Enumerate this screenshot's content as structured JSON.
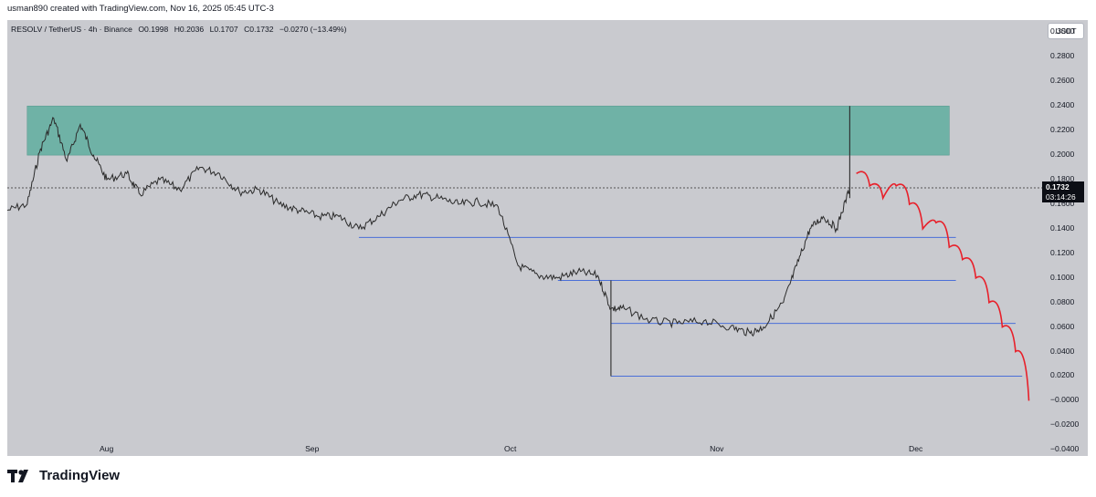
{
  "header": {
    "credit": "usman890 created with TradingView.com, Nov 16, 2025 05:45 UTC-3"
  },
  "legend": {
    "symbol": "RESOLV / TetherUS · 4h · Binance",
    "open": "O0.1998",
    "high": "H0.2036",
    "low": "L0.1707",
    "close": "C0.1732",
    "change": "−0.0270 (−13.49%)"
  },
  "quote_currency": "USDT",
  "last_price": {
    "value": "0.1732",
    "countdown": "03:14:26"
  },
  "brand": {
    "name": "TradingView"
  },
  "colors": {
    "zone": "#6fb2a6",
    "levels": "#4a6fd8",
    "projection": "#e8202a",
    "candles": "#2b2b2b",
    "background": "#c9cacf"
  },
  "chart_data": {
    "type": "line",
    "title": "",
    "xlabel": "",
    "ylabel": "",
    "price_ticks": [
      "0.3000",
      "0.2800",
      "0.2600",
      "0.2400",
      "0.2200",
      "0.2000",
      "0.1800",
      "0.1600",
      "0.1400",
      "0.1200",
      "0.1000",
      "0.0800",
      "0.0600",
      "0.0400",
      "0.0200",
      "−0.0000",
      "−0.0200",
      "−0.0400"
    ],
    "time_ticks": [
      "Aug",
      "Sep",
      "Oct",
      "Nov",
      "Dec"
    ],
    "ylim": [
      -0.045,
      0.31
    ],
    "xlim": [
      "2025-07-17",
      "2025-12-20"
    ],
    "grid": false,
    "series": [
      {
        "values": [
          [
            "2025-07-17",
            0.155
          ],
          [
            "2025-07-20",
            0.16
          ],
          [
            "2025-07-22",
            0.205
          ],
          [
            "2025-07-24",
            0.23
          ],
          [
            "2025-07-26",
            0.195
          ],
          [
            "2025-07-28",
            0.225
          ],
          [
            "2025-07-30",
            0.2
          ],
          [
            "2025-08-01",
            0.18
          ],
          [
            "2025-08-04",
            0.185
          ],
          [
            "2025-08-06",
            0.168
          ],
          [
            "2025-08-09",
            0.18
          ],
          [
            "2025-08-12",
            0.172
          ],
          [
            "2025-08-15",
            0.19
          ],
          [
            "2025-08-18",
            0.185
          ],
          [
            "2025-08-21",
            0.17
          ],
          [
            "2025-08-24",
            0.172
          ],
          [
            "2025-08-27",
            0.16
          ],
          [
            "2025-08-30",
            0.155
          ],
          [
            "2025-09-02",
            0.15
          ],
          [
            "2025-09-05",
            0.15
          ],
          [
            "2025-09-08",
            0.14
          ],
          [
            "2025-09-11",
            0.15
          ],
          [
            "2025-09-14",
            0.163
          ],
          [
            "2025-09-17",
            0.168
          ],
          [
            "2025-09-20",
            0.165
          ],
          [
            "2025-09-23",
            0.16
          ],
          [
            "2025-09-26",
            0.162
          ],
          [
            "2025-09-29",
            0.158
          ],
          [
            "2025-10-02",
            0.11
          ],
          [
            "2025-10-05",
            0.102
          ],
          [
            "2025-10-08",
            0.1
          ],
          [
            "2025-10-11",
            0.105
          ],
          [
            "2025-10-14",
            0.102
          ],
          [
            "2025-10-16",
            0.075
          ],
          [
            "2025-10-18",
            0.075
          ],
          [
            "2025-10-22",
            0.065
          ],
          [
            "2025-10-26",
            0.063
          ],
          [
            "2025-10-30",
            0.065
          ],
          [
            "2025-11-03",
            0.06
          ],
          [
            "2025-11-06",
            0.055
          ],
          [
            "2025-11-08",
            0.06
          ],
          [
            "2025-11-11",
            0.08
          ],
          [
            "2025-11-13",
            0.11
          ],
          [
            "2025-11-15",
            0.14
          ],
          [
            "2025-11-17",
            0.15
          ],
          [
            "2025-11-19",
            0.14
          ],
          [
            "2025-11-21",
            0.173
          ]
        ]
      },
      {
        "values": [
          [
            "2025-11-22",
            0.185
          ],
          [
            "2025-11-24",
            0.175
          ],
          [
            "2025-11-26",
            0.165
          ],
          [
            "2025-11-28",
            0.175
          ],
          [
            "2025-11-30",
            0.16
          ],
          [
            "2025-12-02",
            0.14
          ],
          [
            "2025-12-04",
            0.145
          ],
          [
            "2025-12-06",
            0.125
          ],
          [
            "2025-12-08",
            0.115
          ],
          [
            "2025-12-10",
            0.1
          ],
          [
            "2025-12-12",
            0.08
          ],
          [
            "2025-12-14",
            0.06
          ],
          [
            "2025-12-16",
            0.04
          ],
          [
            "2025-12-18",
            0.0
          ]
        ]
      }
    ],
    "zones": [
      {
        "y_from": 0.2,
        "y_to": 0.24
      }
    ],
    "levels": [
      0.133,
      0.098,
      0.063,
      0.02
    ]
  }
}
